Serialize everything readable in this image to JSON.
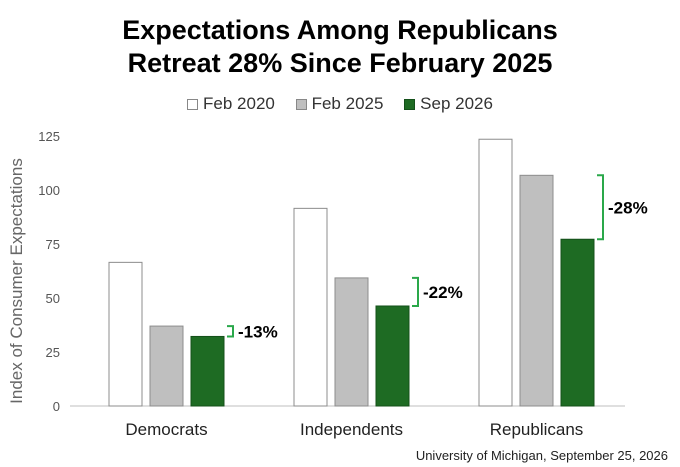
{
  "title_line1": "Expectations Among Republicans",
  "title_line2": "Retreat 28% Since February 2025",
  "source": "University of Michigan, September 25, 2026",
  "chart_data": {
    "type": "bar",
    "title": "Expectations Among Republicans Retreat 28% Since February 2025",
    "categories": [
      "Democrats",
      "Independents",
      "Republicans"
    ],
    "series": [
      {
        "name": "Feb 2020",
        "values": [
          66.5,
          91.5,
          123.5
        ],
        "color": "#ffffff",
        "stroke": "#8c8c8c"
      },
      {
        "name": "Feb 2025",
        "values": [
          37,
          59.3,
          106.8
        ],
        "color": "#bfbfbf",
        "stroke": "#8c8c8c"
      },
      {
        "name": "Sep 2026",
        "values": [
          32.2,
          46.3,
          77.2
        ],
        "color": "#1e6b23",
        "stroke": "#14501a"
      }
    ],
    "changes": [
      "-13%",
      "-22%",
      "-28%"
    ],
    "bracket_color": "#2aa84a",
    "ylabel": "Index of Consumer Expectations",
    "yticks": [
      0,
      25,
      50,
      75,
      100,
      125
    ],
    "ylim": [
      0,
      125
    ],
    "grid": false,
    "legend_position": "top"
  }
}
